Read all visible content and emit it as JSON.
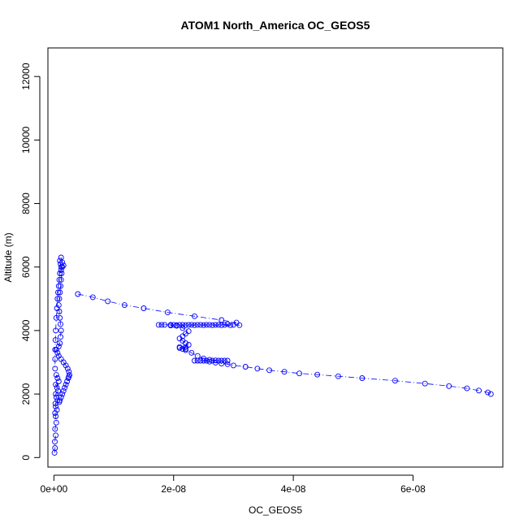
{
  "chart_data": {
    "type": "scatter",
    "title": "ATOM1 North_America OC_GEOS5",
    "xlabel": "OC_GEOS5",
    "ylabel": "Altitude (m)",
    "xlim": [
      -1e-09,
      7.5e-08
    ],
    "ylim": [
      -300,
      12900
    ],
    "x_ticks": [
      0,
      2e-08,
      4e-08,
      6e-08
    ],
    "x_tick_labels": [
      "0e+00",
      "2e-08",
      "4e-08",
      "6e-08"
    ],
    "y_ticks": [
      0,
      2000,
      4000,
      6000,
      8000,
      10000,
      12000
    ],
    "y_tick_labels": [
      "0",
      "2000",
      "4000",
      "6000",
      "8000",
      "10000",
      "12000"
    ],
    "grid": false,
    "marker": "open-circle",
    "line_style": "dash-dot",
    "color": "#0000ff",
    "series": [
      {
        "x": [
          1e-10,
          2e-10,
          1.5e-10,
          3e-10,
          2e-10,
          4e-10,
          3e-10,
          2e-10,
          5e-10,
          3e-10,
          2.5e-10,
          6e-10,
          4e-10,
          3e-10,
          7e-10,
          5e-10,
          3e-10,
          8e-10,
          6e-10,
          4e-10,
          9e-10,
          1e-09,
          1.2e-09,
          1.4e-09,
          1.6e-09,
          1.8e-09,
          2e-09,
          2.2e-09,
          2.4e-09,
          2.5e-09,
          2.6e-09,
          2.5e-09,
          2.3e-09,
          2e-09,
          1.6e-09,
          1.2e-09,
          8e-10,
          6e-10,
          4e-10,
          8e-10,
          1e-09,
          1.1e-09,
          1.2e-09,
          1.1e-09,
          1e-09,
          9e-10,
          8e-10,
          9e-10,
          1e-09,
          1.1e-09,
          1.2e-09,
          1.3e-09,
          1.2e-09,
          1.1e-09,
          1e-09,
          1.2e-09,
          1.4e-09,
          1.6e-09,
          1.4e-09,
          1.2e-09,
          1e-09,
          9e-10,
          8e-10,
          7e-10,
          6e-10,
          5e-10,
          4e-10,
          3e-10,
          2.5e-10,
          2e-10,
          2e-10,
          2e-10
        ],
        "y": [
          150,
          300,
          500,
          700,
          900,
          1100,
          1300,
          1400,
          1500,
          1600,
          1700,
          1800,
          1900,
          2000,
          2100,
          2200,
          2300,
          2400,
          2500,
          2600,
          1750,
          1800,
          1900,
          2000,
          2100,
          2200,
          2300,
          2400,
          2500,
          2550,
          2600,
          2700,
          2800,
          2900,
          3000,
          3100,
          3200,
          3300,
          3400,
          3500,
          3600,
          3800,
          4000,
          4200,
          4400,
          4600,
          4800,
          5000,
          5200,
          5400,
          5600,
          5800,
          6000,
          6100,
          6200,
          6300,
          6150,
          6050,
          6000,
          5900,
          5800,
          5600,
          5400,
          5200,
          5000,
          4700,
          4400,
          4000,
          3700,
          3400,
          3100,
          2800
        ]
      },
      {
        "x": [
          4e-09,
          6.5e-09,
          9e-09,
          1.18e-08,
          1.5e-08,
          1.9e-08,
          2.35e-08,
          2.8e-08,
          3.05e-08,
          2.9e-08,
          2.75e-08,
          2.6e-08,
          2.45e-08,
          2.3e-08,
          2.15e-08,
          2e-08,
          1.85e-08,
          1.75e-08,
          1.8e-08,
          1.95e-08,
          2.1e-08,
          2.25e-08,
          2.4e-08,
          2.55e-08,
          2.7e-08,
          2.85e-08,
          3e-08,
          3.1e-08,
          2.95e-08,
          2.8e-08,
          2.65e-08,
          2.5e-08,
          2.35e-08,
          2.2e-08,
          2.05e-08,
          1.95e-08,
          2.05e-08,
          2.15e-08,
          2.25e-08,
          2.2e-08,
          2.15e-08,
          2.1e-08,
          2.15e-08,
          2.2e-08,
          2.25e-08,
          2.2e-08,
          2.1e-08,
          2.15e-08,
          2.2e-08
        ],
        "y": [
          5150,
          5050,
          4920,
          4800,
          4700,
          4570,
          4450,
          4330,
          4250,
          4200,
          4180,
          4180,
          4180,
          4180,
          4180,
          4180,
          4180,
          4180,
          4180,
          4180,
          4180,
          4180,
          4180,
          4180,
          4180,
          4180,
          4180,
          4170,
          4170,
          4170,
          4170,
          4170,
          4170,
          4170,
          4170,
          4160,
          4150,
          4080,
          3980,
          3900,
          3820,
          3750,
          3680,
          3600,
          3550,
          3480,
          3450,
          3420,
          3380
        ]
      },
      {
        "x": [
          2.1e-08,
          2.2e-08,
          2.3e-08,
          2.4e-08,
          2.5e-08,
          2.6e-08,
          2.7e-08,
          2.8e-08,
          2.9e-08,
          2.85e-08,
          2.75e-08,
          2.65e-08,
          2.55e-08,
          2.45e-08,
          2.35e-08,
          2.4e-08,
          2.5e-08,
          2.6e-08,
          2.7e-08,
          2.8e-08,
          2.9e-08,
          3e-08,
          3.2e-08,
          3.4e-08,
          3.6e-08,
          3.85e-08,
          4.1e-08,
          4.4e-08,
          4.75e-08,
          5.15e-08,
          5.7e-08,
          6.2e-08,
          6.6e-08,
          6.9e-08,
          7.1e-08,
          7.25e-08,
          7.3e-08
        ],
        "y": [
          3480,
          3420,
          3300,
          3200,
          3120,
          3080,
          3060,
          3050,
          3050,
          3050,
          3050,
          3050,
          3050,
          3050,
          3050,
          3050,
          3050,
          3020,
          2990,
          2960,
          2940,
          2900,
          2860,
          2800,
          2750,
          2700,
          2650,
          2610,
          2560,
          2500,
          2420,
          2330,
          2250,
          2180,
          2110,
          2050,
          2000
        ]
      }
    ]
  }
}
